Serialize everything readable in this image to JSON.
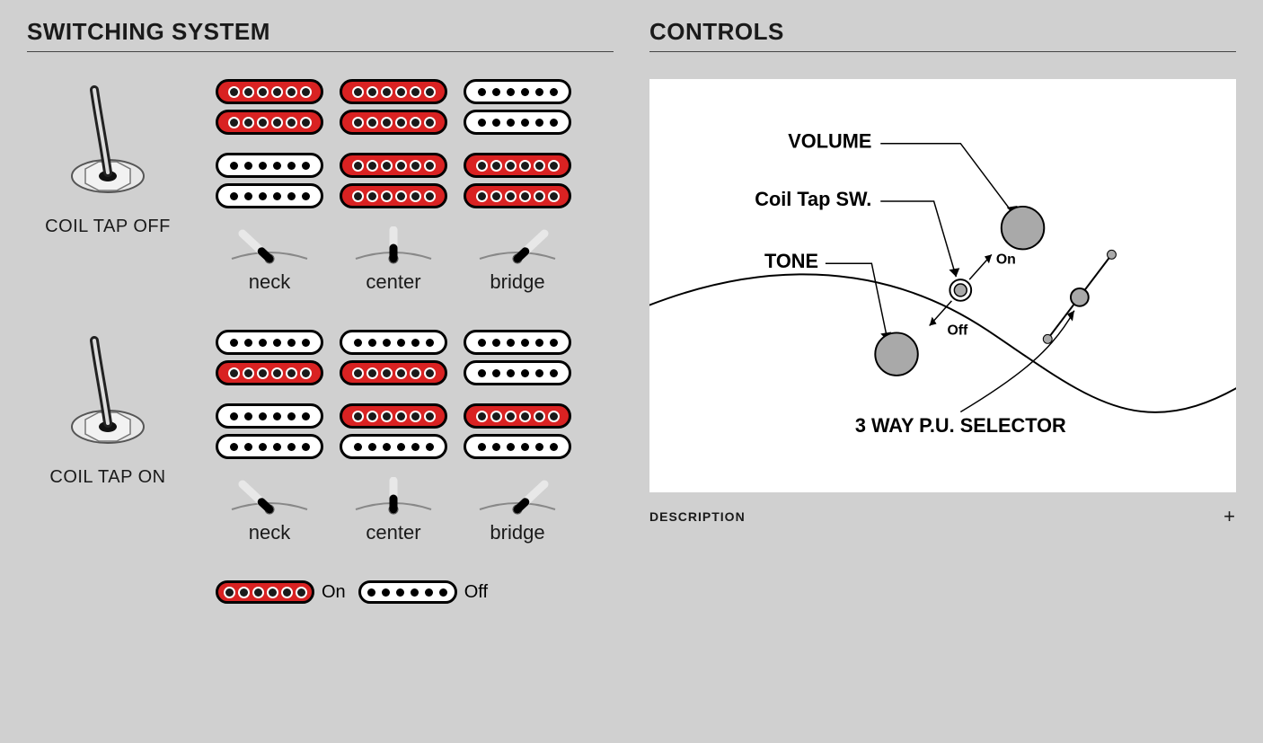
{
  "switching": {
    "title": "SWITCHING SYSTEM",
    "coil_on_color": "#d92222",
    "coil_off_color": "#ffffff",
    "positions": [
      "neck",
      "center",
      "bridge"
    ],
    "modes": [
      {
        "toggle_label": "COIL TAP OFF",
        "toggle_direction": "down",
        "rows": [
          {
            "neck": [
              "on",
              "on"
            ],
            "center": [
              "on",
              "on"
            ],
            "bridge": [
              "off",
              "off"
            ]
          },
          {
            "neck": [
              "off",
              "off"
            ],
            "center": [
              "on",
              "on"
            ],
            "bridge": [
              "on",
              "on"
            ]
          }
        ]
      },
      {
        "toggle_label": "COIL TAP ON",
        "toggle_direction": "up",
        "rows": [
          {
            "neck": [
              "off",
              "on"
            ],
            "center": [
              "off",
              "on"
            ],
            "bridge": [
              "off",
              "off"
            ]
          },
          {
            "neck": [
              "off",
              "off"
            ],
            "center": [
              "on",
              "off"
            ],
            "bridge": [
              "on",
              "off"
            ]
          }
        ]
      }
    ],
    "legend": {
      "on": "On",
      "off": "Off"
    }
  },
  "controls": {
    "title": "CONTROLS",
    "labels": {
      "volume": "VOLUME",
      "coiltap": "Coil Tap SW.",
      "tone": "TONE",
      "selector": "3 WAY P.U. SELECTOR",
      "on": "On",
      "off": "Off"
    },
    "description_label": "DESCRIPTION",
    "colors": {
      "knob_fill": "#a9a9a9",
      "outline": "#000000",
      "bg": "#ffffff"
    }
  }
}
